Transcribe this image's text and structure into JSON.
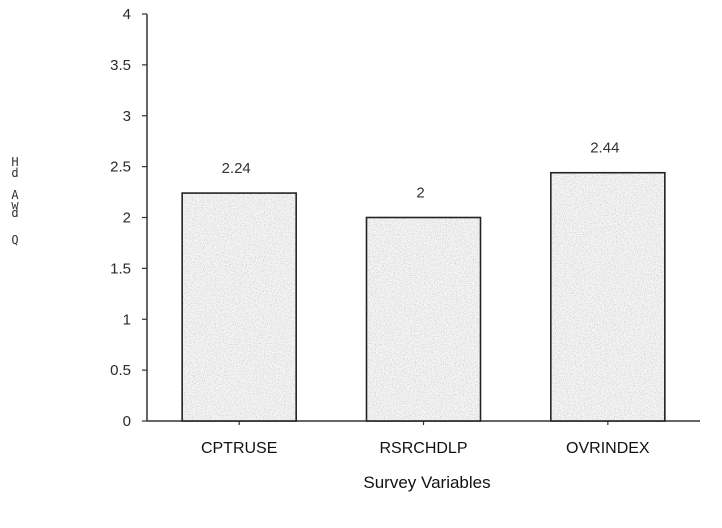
{
  "chart_data": {
    "type": "bar",
    "categories": [
      "CPTRUSE",
      "RSRCHDLP",
      "OVRINDEX"
    ],
    "values": [
      2.24,
      2,
      2.44
    ],
    "data_labels": [
      "2.24",
      "2",
      "2.44"
    ],
    "y_ticks": [
      "0",
      "0.5",
      "1",
      "1.5",
      "2",
      "2.5",
      "3",
      "3.5",
      "4"
    ],
    "xlabel": "Survey Variables",
    "ylabel_glyphs": [
      "H",
      "d",
      "A",
      "w",
      "d",
      "Q"
    ],
    "ylim": [
      0,
      4
    ],
    "grid": false,
    "bar_fill": "#f6f6f6",
    "bar_stroke": "#222222",
    "axis_color": "#333333"
  }
}
